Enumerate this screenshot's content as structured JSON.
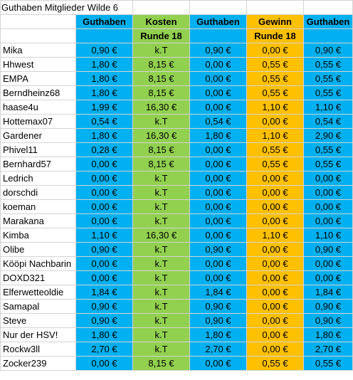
{
  "sheet": {
    "title": "Guthaben Mitglieder Wilde 6",
    "headers": [
      {
        "line1": "Guthaben",
        "line2": ""
      },
      {
        "line1": "Kosten",
        "line2": "Runde 18"
      },
      {
        "line1": "Guthaben",
        "line2": ""
      },
      {
        "line1": "Gewinn",
        "line2": "Runde 18"
      },
      {
        "line1": "Guthaben",
        "line2": ""
      }
    ],
    "column_colors": [
      "#00b0f0",
      "#92d050",
      "#00b0f0",
      "#ffc000",
      "#00b0f0"
    ],
    "rows": [
      {
        "name": "Mika",
        "values": [
          "0,90 €",
          "k.T",
          "0,90 €",
          "0,00 €",
          "0,90 €"
        ]
      },
      {
        "name": "Hhwest",
        "values": [
          "1,80 €",
          "8,15 €",
          "0,00 €",
          "0,55 €",
          "0,55 €"
        ]
      },
      {
        "name": "EMPA",
        "values": [
          "1,80 €",
          "8,15 €",
          "0,00 €",
          "0,55 €",
          "0,55 €"
        ]
      },
      {
        "name": "Berndheinz68",
        "values": [
          "1,80 €",
          "8,15 €",
          "0,00 €",
          "0,55 €",
          "0,55 €"
        ]
      },
      {
        "name": "haase4u",
        "values": [
          "1,99 €",
          "16,30 €",
          "0,00 €",
          "1,10 €",
          "1,10 €"
        ]
      },
      {
        "name": "Hottemax07",
        "values": [
          "0,54 €",
          "k.T",
          "0,54 €",
          "0,00 €",
          "0,54 €"
        ]
      },
      {
        "name": "Gardener",
        "values": [
          "1,80 €",
          "16,30 €",
          "1,80 €",
          "1,10 €",
          "2,90 €"
        ]
      },
      {
        "name": "Phivel11",
        "values": [
          "0,28 €",
          "8,15 €",
          "0,00 €",
          "0,55 €",
          "0,55 €"
        ]
      },
      {
        "name": "Bernhard57",
        "values": [
          "0,00 €",
          "8,15 €",
          "0,00 €",
          "0,55 €",
          "0,55 €"
        ]
      },
      {
        "name": "Ledrich",
        "values": [
          "0,00 €",
          "k.T",
          "0,00 €",
          "0,00 €",
          "0,00 €"
        ]
      },
      {
        "name": "dorschdi",
        "values": [
          "0,00 €",
          "k.T",
          "0,00 €",
          "0,00 €",
          "0,00 €"
        ]
      },
      {
        "name": "koeman",
        "values": [
          "0,00 €",
          "k.T",
          "0,00 €",
          "0,00 €",
          "0,00 €"
        ]
      },
      {
        "name": "Marakana",
        "values": [
          "0,00 €",
          "k.T",
          "0,00 €",
          "0,00 €",
          "0,00 €"
        ]
      },
      {
        "name": "Kimba",
        "values": [
          "1,10 €",
          "16,30 €",
          "0,00 €",
          "1,10 €",
          "1,10 €"
        ]
      },
      {
        "name": "Olibe",
        "values": [
          "0,90 €",
          "k.T",
          "0,90 €",
          "0,00 €",
          "0,90 €"
        ]
      },
      {
        "name": "Kööpi Nachbarin",
        "values": [
          "0,00 €",
          "k.T",
          "0,00 €",
          "0,00 €",
          "0,00 €"
        ]
      },
      {
        "name": "DOXD321",
        "values": [
          "0,00 €",
          "k.T",
          "0,00 €",
          "0,00 €",
          "0,00 €"
        ]
      },
      {
        "name": "Elferwetteoldie",
        "values": [
          "1,84 €",
          "k.T",
          "1,84 €",
          "0,00 €",
          "1,84 €"
        ]
      },
      {
        "name": "Samapal",
        "values": [
          "0,90 €",
          "k.T",
          "0,90 €",
          "0,00 €",
          "0,90 €"
        ]
      },
      {
        "name": "Steve",
        "values": [
          "0,90 €",
          "k.T",
          "0,90 €",
          "0,00 €",
          "0,90 €"
        ]
      },
      {
        "name": "Nur der HSV!",
        "values": [
          "1,80 €",
          "k.T",
          "1,80 €",
          "0,00 €",
          "1,80 €"
        ]
      },
      {
        "name": "Rockw3ll",
        "values": [
          "2,70 €",
          "k.T",
          "2,70 €",
          "0,00 €",
          "2,70 €"
        ]
      },
      {
        "name": "Zocker239",
        "values": [
          "0,00 €",
          "8,15 €",
          "0,00 €",
          "0,55 €",
          "0,55 €"
        ]
      }
    ]
  }
}
